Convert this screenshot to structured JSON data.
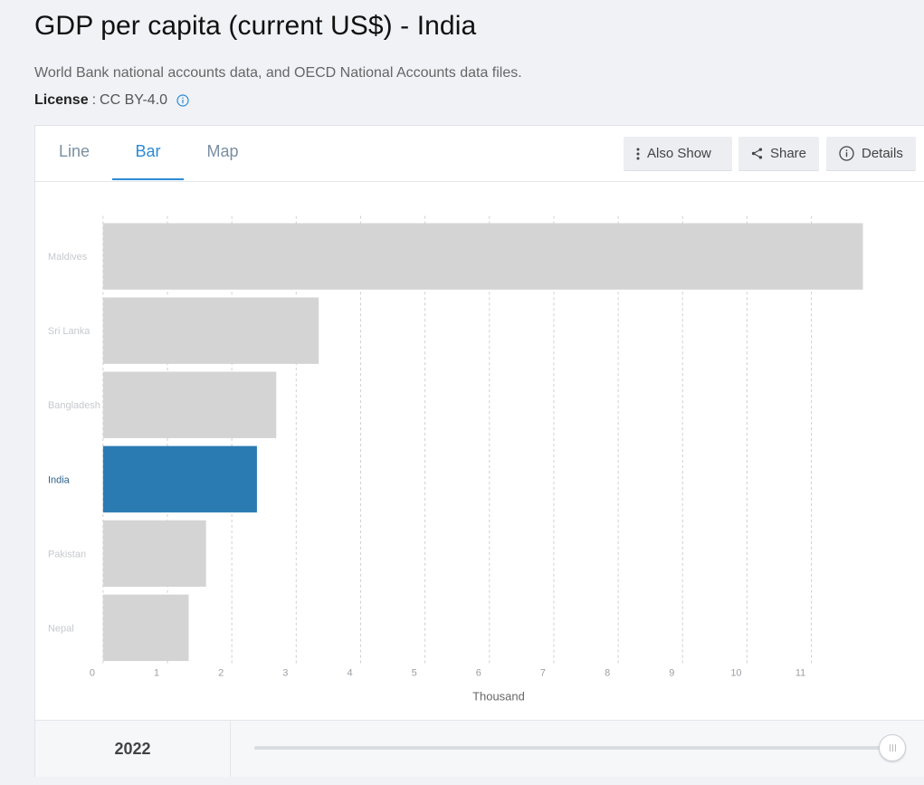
{
  "header": {
    "title": "GDP per capita (current US$) - India",
    "source": "World Bank national accounts data, and OECD National Accounts data files.",
    "license_label": "License",
    "license_sep": ":",
    "license_value": "CC BY-4.0",
    "info_icon": "info-circle-icon"
  },
  "tabs": [
    {
      "label": "Line",
      "active": false
    },
    {
      "label": "Bar",
      "active": true
    },
    {
      "label": "Map",
      "active": false
    }
  ],
  "toolbar": {
    "also_show": "Also Show",
    "share": "Share",
    "details": "Details"
  },
  "colors": {
    "accent": "#2b8bd5",
    "highlight_bar": "#2b7bb3",
    "default_bar": "#d4d4d4"
  },
  "chart_data": {
    "type": "bar",
    "orientation": "horizontal",
    "categories": [
      "Maldives",
      "Sri Lanka",
      "Bangladesh",
      "India",
      "Pakistan",
      "Nepal"
    ],
    "values": [
      11800,
      3350,
      2690,
      2390,
      1600,
      1330
    ],
    "highlight": "India",
    "xlabel": "Thousand",
    "xticks": [
      "0",
      "1",
      "2",
      "3",
      "4",
      "5",
      "6",
      "7",
      "8",
      "9",
      "10",
      "11"
    ],
    "xlim": [
      0,
      12000
    ],
    "grid": true
  },
  "footer": {
    "year": "2022",
    "slider_position": 1.0
  }
}
